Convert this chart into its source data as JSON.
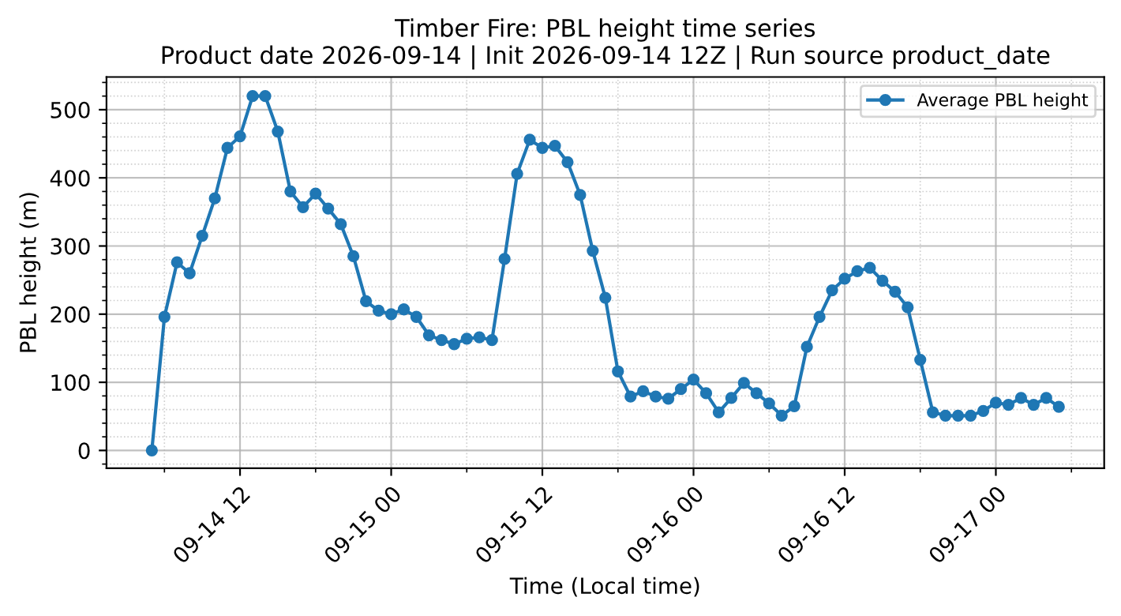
{
  "chart_data": {
    "type": "line",
    "title": "Timber Fire: PBL height time series\nProduct date 2026-09-14 | Init 2026-09-14 12Z | Run source product_date",
    "xlabel": "Time (Local time)",
    "ylabel": "PBL height (m)",
    "x": [
      "2026-09-14T05:00",
      "2026-09-14T06:00",
      "2026-09-14T07:00",
      "2026-09-14T08:00",
      "2026-09-14T09:00",
      "2026-09-14T10:00",
      "2026-09-14T11:00",
      "2026-09-14T12:00",
      "2026-09-14T13:00",
      "2026-09-14T14:00",
      "2026-09-14T15:00",
      "2026-09-14T16:00",
      "2026-09-14T17:00",
      "2026-09-14T18:00",
      "2026-09-14T19:00",
      "2026-09-14T20:00",
      "2026-09-14T21:00",
      "2026-09-14T22:00",
      "2026-09-14T23:00",
      "2026-09-15T00:00",
      "2026-09-15T01:00",
      "2026-09-15T02:00",
      "2026-09-15T03:00",
      "2026-09-15T04:00",
      "2026-09-15T05:00",
      "2026-09-15T06:00",
      "2026-09-15T07:00",
      "2026-09-15T08:00",
      "2026-09-15T09:00",
      "2026-09-15T10:00",
      "2026-09-15T11:00",
      "2026-09-15T12:00",
      "2026-09-15T13:00",
      "2026-09-15T14:00",
      "2026-09-15T15:00",
      "2026-09-15T16:00",
      "2026-09-15T17:00",
      "2026-09-15T18:00",
      "2026-09-15T19:00",
      "2026-09-15T20:00",
      "2026-09-15T21:00",
      "2026-09-15T22:00",
      "2026-09-15T23:00",
      "2026-09-16T00:00",
      "2026-09-16T01:00",
      "2026-09-16T02:00",
      "2026-09-16T03:00",
      "2026-09-16T04:00",
      "2026-09-16T05:00",
      "2026-09-16T06:00",
      "2026-09-16T07:00",
      "2026-09-16T08:00",
      "2026-09-16T09:00",
      "2026-09-16T10:00",
      "2026-09-16T11:00",
      "2026-09-16T12:00",
      "2026-09-16T13:00",
      "2026-09-16T14:00",
      "2026-09-16T15:00",
      "2026-09-16T16:00",
      "2026-09-16T17:00",
      "2026-09-16T18:00",
      "2026-09-16T19:00",
      "2026-09-16T20:00",
      "2026-09-16T21:00",
      "2026-09-16T22:00",
      "2026-09-16T23:00",
      "2026-09-17T00:00",
      "2026-09-17T01:00",
      "2026-09-17T02:00",
      "2026-09-17T03:00",
      "2026-09-17T04:00",
      "2026-09-17T05:00"
    ],
    "series": [
      {
        "name": "Average PBL height",
        "color": "#1f77b4",
        "values": [
          0,
          196,
          276,
          260,
          315,
          370,
          444,
          461,
          520,
          520,
          468,
          380,
          357,
          377,
          355,
          332,
          285,
          219,
          205,
          200,
          207,
          196,
          169,
          162,
          156,
          164,
          166,
          162,
          281,
          406,
          456,
          444,
          447,
          423,
          375,
          293,
          224,
          116,
          79,
          87,
          79,
          76,
          90,
          104,
          84,
          56,
          77,
          99,
          84,
          69,
          51,
          65,
          152,
          196,
          235,
          252,
          263,
          268,
          249,
          233,
          210,
          133,
          56,
          51,
          51,
          51,
          58,
          70,
          67,
          77,
          67,
          77,
          64
        ]
      }
    ],
    "xlim": [
      "2026-09-14T01:24",
      "2026-09-17T08:36"
    ],
    "xticks": [
      {
        "value": "2026-09-14T06:00",
        "label": null
      },
      {
        "value": "2026-09-14T12:00",
        "label": "09-14 12"
      },
      {
        "value": "2026-09-14T18:00",
        "label": null
      },
      {
        "value": "2026-09-15T00:00",
        "label": "09-15 00"
      },
      {
        "value": "2026-09-15T06:00",
        "label": null
      },
      {
        "value": "2026-09-15T12:00",
        "label": "09-15 12"
      },
      {
        "value": "2026-09-15T18:00",
        "label": null
      },
      {
        "value": "2026-09-16T00:00",
        "label": "09-16 00"
      },
      {
        "value": "2026-09-16T06:00",
        "label": null
      },
      {
        "value": "2026-09-16T12:00",
        "label": "09-16 12"
      },
      {
        "value": "2026-09-16T18:00",
        "label": null
      },
      {
        "value": "2026-09-17T00:00",
        "label": "09-17 00"
      },
      {
        "value": "2026-09-17T06:00",
        "label": null
      }
    ],
    "ylim": [
      -26,
      548
    ],
    "yticks": [
      {
        "value": -20,
        "label": null
      },
      0,
      {
        "value": 20,
        "label": null
      },
      {
        "value": 40,
        "label": null
      },
      {
        "value": 60,
        "label": null
      },
      {
        "value": 80,
        "label": null
      },
      100,
      {
        "value": 120,
        "label": null
      },
      {
        "value": 140,
        "label": null
      },
      {
        "value": 160,
        "label": null
      },
      {
        "value": 180,
        "label": null
      },
      200,
      {
        "value": 220,
        "label": null
      },
      {
        "value": 240,
        "label": null
      },
      {
        "value": 260,
        "label": null
      },
      {
        "value": 280,
        "label": null
      },
      300,
      {
        "value": 320,
        "label": null
      },
      {
        "value": 340,
        "label": null
      },
      {
        "value": 360,
        "label": null
      },
      {
        "value": 380,
        "label": null
      },
      400,
      {
        "value": 420,
        "label": null
      },
      {
        "value": 440,
        "label": null
      },
      {
        "value": 460,
        "label": null
      },
      {
        "value": 480,
        "label": null
      },
      500,
      {
        "value": 520,
        "label": null
      },
      {
        "value": 540,
        "label": null
      }
    ],
    "grid": true,
    "legend": "top right",
    "marker": "circle",
    "line_style": "solid"
  }
}
